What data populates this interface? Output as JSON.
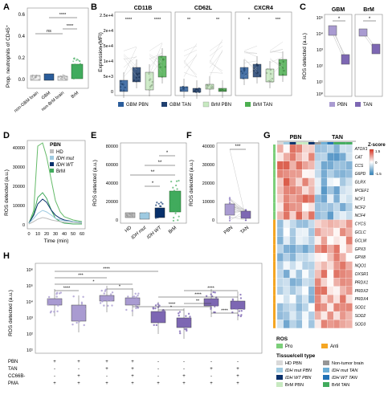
{
  "colors": {
    "hd": "#bdbdbd",
    "idh_mut": "#9ecae1",
    "idh_wt": "#08306b",
    "brm": "#41ab5d",
    "gbm_pbn": "#2b5d9b",
    "gbm_tan": "#1f3f6f",
    "brm_pbn": "#c7e9c0",
    "brm_tan": "#4caf50",
    "pbn_purple": "#a99bd1",
    "tan_purple": "#7d67b3",
    "heat_low": "#2c7fb8",
    "heat_mid": "#ffffff",
    "heat_high": "#d7301f",
    "ros_pro": "#7ccf7a",
    "ros_anti": "#f5a623"
  },
  "panels": {
    "A": {
      "letter": "A",
      "ylabel": "Prop. neutrophils of CD45⁺",
      "yticks": [
        "0.6",
        "0.4",
        "0.2",
        "0.0"
      ],
      "xticks": [
        "non-GBM brain",
        "GBM",
        "non-BrM brain",
        "BrM"
      ],
      "sig": [
        "ns",
        "****",
        "****"
      ]
    },
    "B": {
      "letter": "B",
      "ylabel": "Expression (MFI)",
      "yticks": [
        "2.5e+4",
        "2e+4",
        "1.5e+4",
        "1e+4",
        "5e+3",
        "0"
      ],
      "facets": [
        "CD11B",
        "CD62L",
        "CXCR4"
      ],
      "sig": [
        [
          "****",
          "****"
        ],
        [
          "**",
          "**"
        ],
        [
          "*",
          "***"
        ]
      ],
      "legend": [
        "GBM PBN",
        "GBM TAN",
        "BrM PBN",
        "BrM TAN"
      ]
    },
    "C": {
      "letter": "C",
      "ylabel": "ROS detected (a.u.)",
      "yticks": [
        "10⁵",
        "10⁴",
        "10³",
        "10²",
        "10¹",
        "10⁰"
      ],
      "facets": [
        "GBM",
        "BrM"
      ],
      "sig": [
        "*",
        "*"
      ],
      "legend": [
        "PBN",
        "TAN"
      ]
    },
    "D": {
      "letter": "D",
      "ylabel": "ROS detected (a.u.)",
      "xlabel": "Time (min)",
      "yticks": [
        "40000",
        "30000",
        "20000",
        "10000",
        "0"
      ],
      "xticks": [
        "0",
        "10",
        "20",
        "30",
        "40",
        "50",
        "60"
      ],
      "legend_title": "PBN",
      "legend": [
        "HD",
        "IDH mut",
        "IDH WT",
        "BrM"
      ]
    },
    "E": {
      "letter": "E",
      "ylabel": "ROS detected (a.u.)",
      "yticks": [
        "80000",
        "60000",
        "40000",
        "20000",
        "0"
      ],
      "xticks": [
        "HD",
        "IDH mut",
        "IDH WT",
        "BrM"
      ],
      "sig": [
        "*",
        "**",
        "**",
        "*"
      ]
    },
    "F": {
      "letter": "F",
      "ylabel": "ROS detected (a.u.)",
      "yticks": [
        "40000",
        "30000",
        "20000",
        "10000",
        "0"
      ],
      "xticks": [
        "PBN",
        "TAN"
      ],
      "sig": [
        "***"
      ]
    },
    "G": {
      "letter": "G",
      "col_groups": [
        "PBN",
        "TAN"
      ],
      "zscore_title": "Z-score",
      "zscore_ticks": [
        "1.5",
        "0",
        "-1.5"
      ],
      "genes": [
        "ATOX1",
        "CAT",
        "CCS",
        "G6PD",
        "GLRX",
        "IPCEF1",
        "NCF1",
        "NCF2",
        "NCF4",
        "CYCS",
        "GCLC",
        "GCLM",
        "GPX3",
        "GPX8",
        "NQO1",
        "OXSR1",
        "PRDX1",
        "PRDX2",
        "PRDX4",
        "SOD1",
        "SOD2",
        "SOD3"
      ],
      "ros_title": "ROS",
      "ros_items": [
        "Pro",
        "Anti"
      ],
      "tissue_title": "Tissue/cell type",
      "tissue_items": [
        "HD PBN",
        "Non-tumor brain",
        "IDH mut PBN",
        "IDH mut TAN",
        "IDH WT PBN",
        "IDH WT TAN",
        "BrM PBN",
        "BrM TAN"
      ]
    },
    "H": {
      "letter": "H",
      "ylabel": "ROS detected (a.u.)",
      "yticks": [
        "10⁶",
        "10⁵",
        "10⁴",
        "10³",
        "10²",
        "10¹"
      ],
      "row_labels": [
        "PBN",
        "TAN",
        "CC66B-",
        "PMA"
      ],
      "conditions": [
        [
          "+",
          "-",
          "-",
          "+"
        ],
        [
          "+",
          "-",
          "+",
          "+"
        ],
        [
          "+",
          "+",
          "-",
          "+"
        ],
        [
          "+",
          "+",
          "+",
          "+"
        ],
        [
          "-",
          "-",
          "-",
          "+"
        ],
        [
          "-",
          "-",
          "+",
          "+"
        ],
        [
          "-",
          "+",
          "-",
          "+"
        ],
        [
          "-",
          "+",
          "+",
          "+"
        ]
      ],
      "sig": [
        "****",
        "*",
        "***",
        "****",
        "*",
        "*",
        "****",
        "**",
        "****",
        "****",
        "****"
      ]
    }
  }
}
